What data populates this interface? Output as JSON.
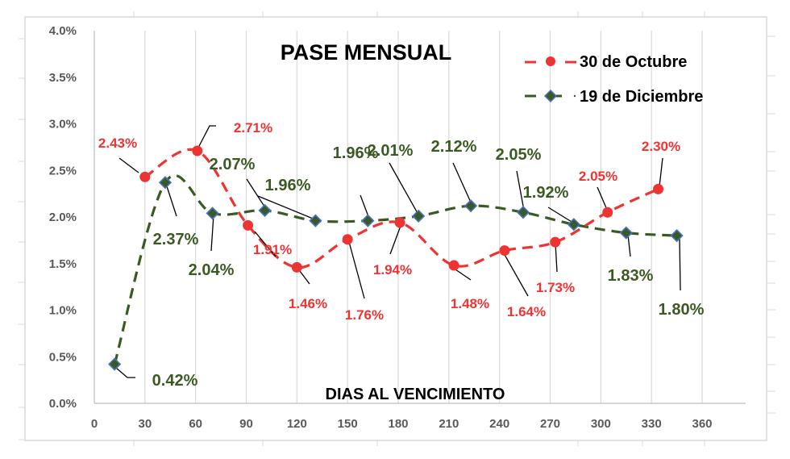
{
  "chart_data": {
    "type": "line",
    "title": "PASE MENSUAL",
    "xlabel": "DIAS AL VENCIMIENTO",
    "ylabel": "",
    "xlim": [
      0,
      360
    ],
    "ylim": [
      0.0,
      4.0
    ],
    "x_ticks": [
      "0",
      "30",
      "60",
      "90",
      "120",
      "150",
      "180",
      "210",
      "240",
      "270",
      "300",
      "330",
      "360"
    ],
    "y_ticks": [
      "0.0%",
      "0.5%",
      "1.0%",
      "1.5%",
      "2.0%",
      "2.5%",
      "3.0%",
      "3.5%",
      "4.0%"
    ],
    "grid": "vertical",
    "legend_position": "top-right",
    "series": [
      {
        "name": "30 de Octubre",
        "color": "#EE3333",
        "marker": "circle",
        "line_style": "dashed",
        "x": [
          30,
          61,
          91,
          120,
          150,
          181,
          213,
          243,
          273,
          304,
          334
        ],
        "values": [
          2.43,
          2.71,
          1.91,
          1.46,
          1.76,
          1.94,
          1.48,
          1.64,
          1.73,
          2.05,
          2.3
        ],
        "labels": [
          "2.43%",
          "2.71%",
          "1.91%",
          "1.46%",
          "1.76%",
          "1.94%",
          "1.48%",
          "1.64%",
          "1.73%",
          "2.05%",
          "2.30%"
        ]
      },
      {
        "name": "19 de Diciembre",
        "color": "#3B5A23",
        "marker_border": "#4472C4",
        "marker": "diamond",
        "line_style": "dashed",
        "x": [
          12,
          42,
          70,
          101,
          131,
          162,
          192,
          223,
          254,
          284,
          315,
          345
        ],
        "values": [
          0.42,
          2.37,
          2.04,
          2.07,
          1.96,
          1.96,
          2.01,
          2.12,
          2.05,
          1.92,
          1.83,
          1.8
        ],
        "labels": [
          "0.42%",
          "2.37%",
          "2.04%",
          "2.07%",
          "1.96%",
          "1.96%",
          "2.01%",
          "2.12%",
          "2.05%",
          "1.92%",
          "1.83%",
          "1.80%"
        ]
      }
    ]
  }
}
